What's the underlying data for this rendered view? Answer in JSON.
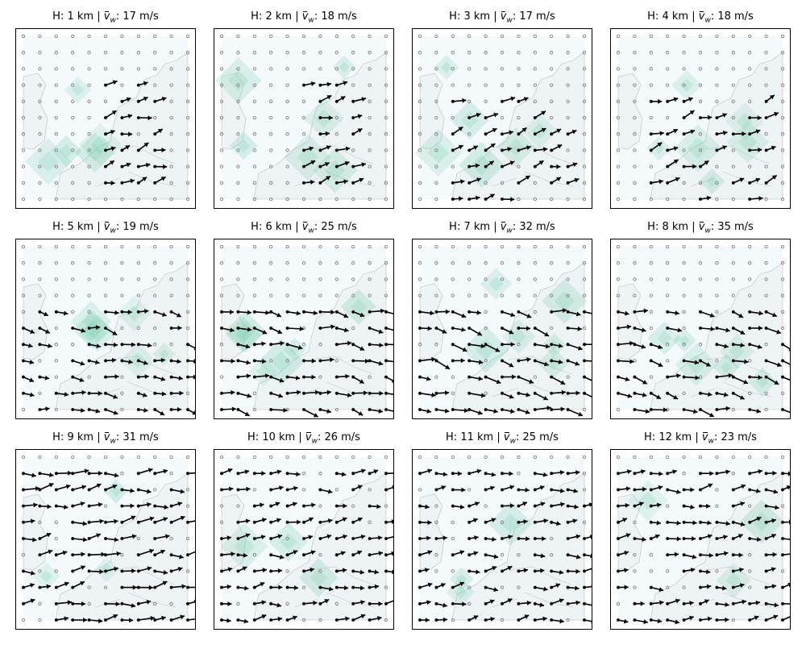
{
  "chart_data": [
    {
      "type": "vector-field",
      "height_label": "H: 1 km",
      "mean_wind": "17 m/s"
    },
    {
      "type": "vector-field",
      "height_label": "H: 2 km",
      "mean_wind": "18 m/s"
    },
    {
      "type": "vector-field",
      "height_label": "H: 3 km",
      "mean_wind": "17 m/s"
    },
    {
      "type": "vector-field",
      "height_label": "H: 4 km",
      "mean_wind": "18 m/s"
    },
    {
      "type": "vector-field",
      "height_label": "H: 5 km",
      "mean_wind": "19 m/s"
    },
    {
      "type": "vector-field",
      "height_label": "H: 6 km",
      "mean_wind": "25 m/s"
    },
    {
      "type": "vector-field",
      "height_label": "H: 7 km",
      "mean_wind": "32 m/s"
    },
    {
      "type": "vector-field",
      "height_label": "H: 8 km",
      "mean_wind": "35 m/s"
    },
    {
      "type": "vector-field",
      "height_label": "H: 9 km",
      "mean_wind": "31 m/s"
    },
    {
      "type": "vector-field",
      "height_label": "H: 10 km",
      "mean_wind": "26 m/s"
    },
    {
      "type": "vector-field",
      "height_label": "H: 11 km",
      "mean_wind": "25 m/s"
    },
    {
      "type": "vector-field",
      "height_label": "H: 12 km",
      "mean_wind": "23 m/s"
    }
  ],
  "labels": {
    "separator": "|",
    "mean_symbol": "v",
    "mean_subscript": "w"
  },
  "colors": {
    "arrow": "#000000",
    "grid_point": "#808080",
    "land": "#eef3f4",
    "sea": "#f4f9fc",
    "coast": "#b8bec4",
    "highlight": "#7fcfb0"
  }
}
